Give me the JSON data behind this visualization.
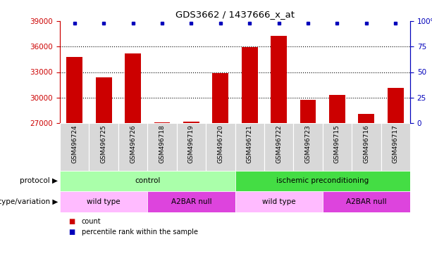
{
  "title": "GDS3662 / 1437666_x_at",
  "samples": [
    "GSM496724",
    "GSM496725",
    "GSM496726",
    "GSM496718",
    "GSM496719",
    "GSM496720",
    "GSM496721",
    "GSM496722",
    "GSM496723",
    "GSM496715",
    "GSM496716",
    "GSM496717"
  ],
  "counts": [
    34800,
    32400,
    35200,
    27120,
    27160,
    32900,
    35900,
    37300,
    29700,
    30300,
    28100,
    31100
  ],
  "ylim": [
    27000,
    39000
  ],
  "yticks": [
    27000,
    30000,
    33000,
    36000,
    39000
  ],
  "right_yticks": [
    0,
    25,
    50,
    75,
    100
  ],
  "bar_color": "#cc0000",
  "dot_color": "#0000bb",
  "grid_color": "#000000",
  "protocol_control_color": "#aaffaa",
  "protocol_ischemic_color": "#44dd44",
  "genotype_wildtype_color": "#ffbbff",
  "genotype_a2bar_color": "#dd44dd",
  "bg_label_color": "#d8d8d8",
  "protocol_labels": [
    "control",
    "ischemic preconditioning"
  ],
  "genotype_labels": [
    "wild type",
    "A2BAR null",
    "wild type",
    "A2BAR null"
  ],
  "legend_count_label": "count",
  "legend_percentile_label": "percentile rank within the sample",
  "xlabel_protocol": "protocol",
  "xlabel_genotype": "genotype/variation"
}
